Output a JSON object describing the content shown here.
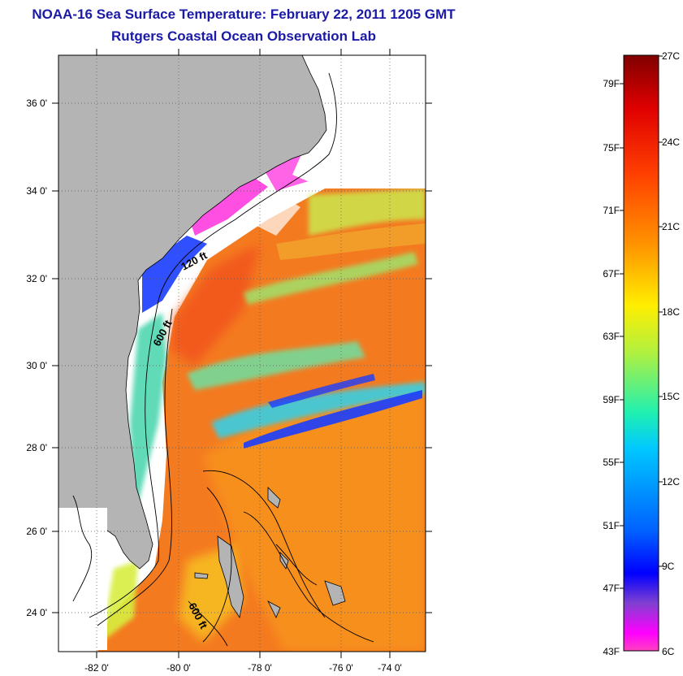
{
  "header": {
    "title": "NOAA-16 Sea Surface Temperature:  February 22, 2011 1205 GMT",
    "subtitle": "Rutgers Coastal Ocean Observation Lab"
  },
  "map": {
    "lat_labels": [
      "36 0'",
      "34 0'",
      "32 0'",
      "30 0'",
      "28 0'",
      "26 0'",
      "24 0'"
    ],
    "lon_labels": [
      "-82 0'",
      "-80 0'",
      "-78 0'",
      "-76 0'",
      "-74 0'"
    ],
    "contour_labels": [
      "120 ft",
      "600 ft",
      "600 ft"
    ],
    "colors": {
      "land": "#b4b4b4",
      "ocean_warm": "#f46a1e",
      "ocean_mid": "#f7941d",
      "cool": "#2fd3ee",
      "cold": "#1a3dff",
      "no_data": "#ffffff"
    }
  },
  "colorbar": {
    "celsius_labels": [
      "27C",
      "24C",
      "21C",
      "18C",
      "15C",
      "12C",
      "9C",
      "6C"
    ],
    "fahrenheit_labels": [
      "79F",
      "75F",
      "71F",
      "67F",
      "63F",
      "59F",
      "55F",
      "51F",
      "47F",
      "43F"
    ],
    "gradient": [
      "#800000",
      "#e00000",
      "#ff4000",
      "#ff9500",
      "#ffee00",
      "#b0f040",
      "#20f0b0",
      "#00c8ff",
      "#0060ff",
      "#0000ff",
      "#8040d0",
      "#ff00ff",
      "#ff40c0"
    ]
  }
}
